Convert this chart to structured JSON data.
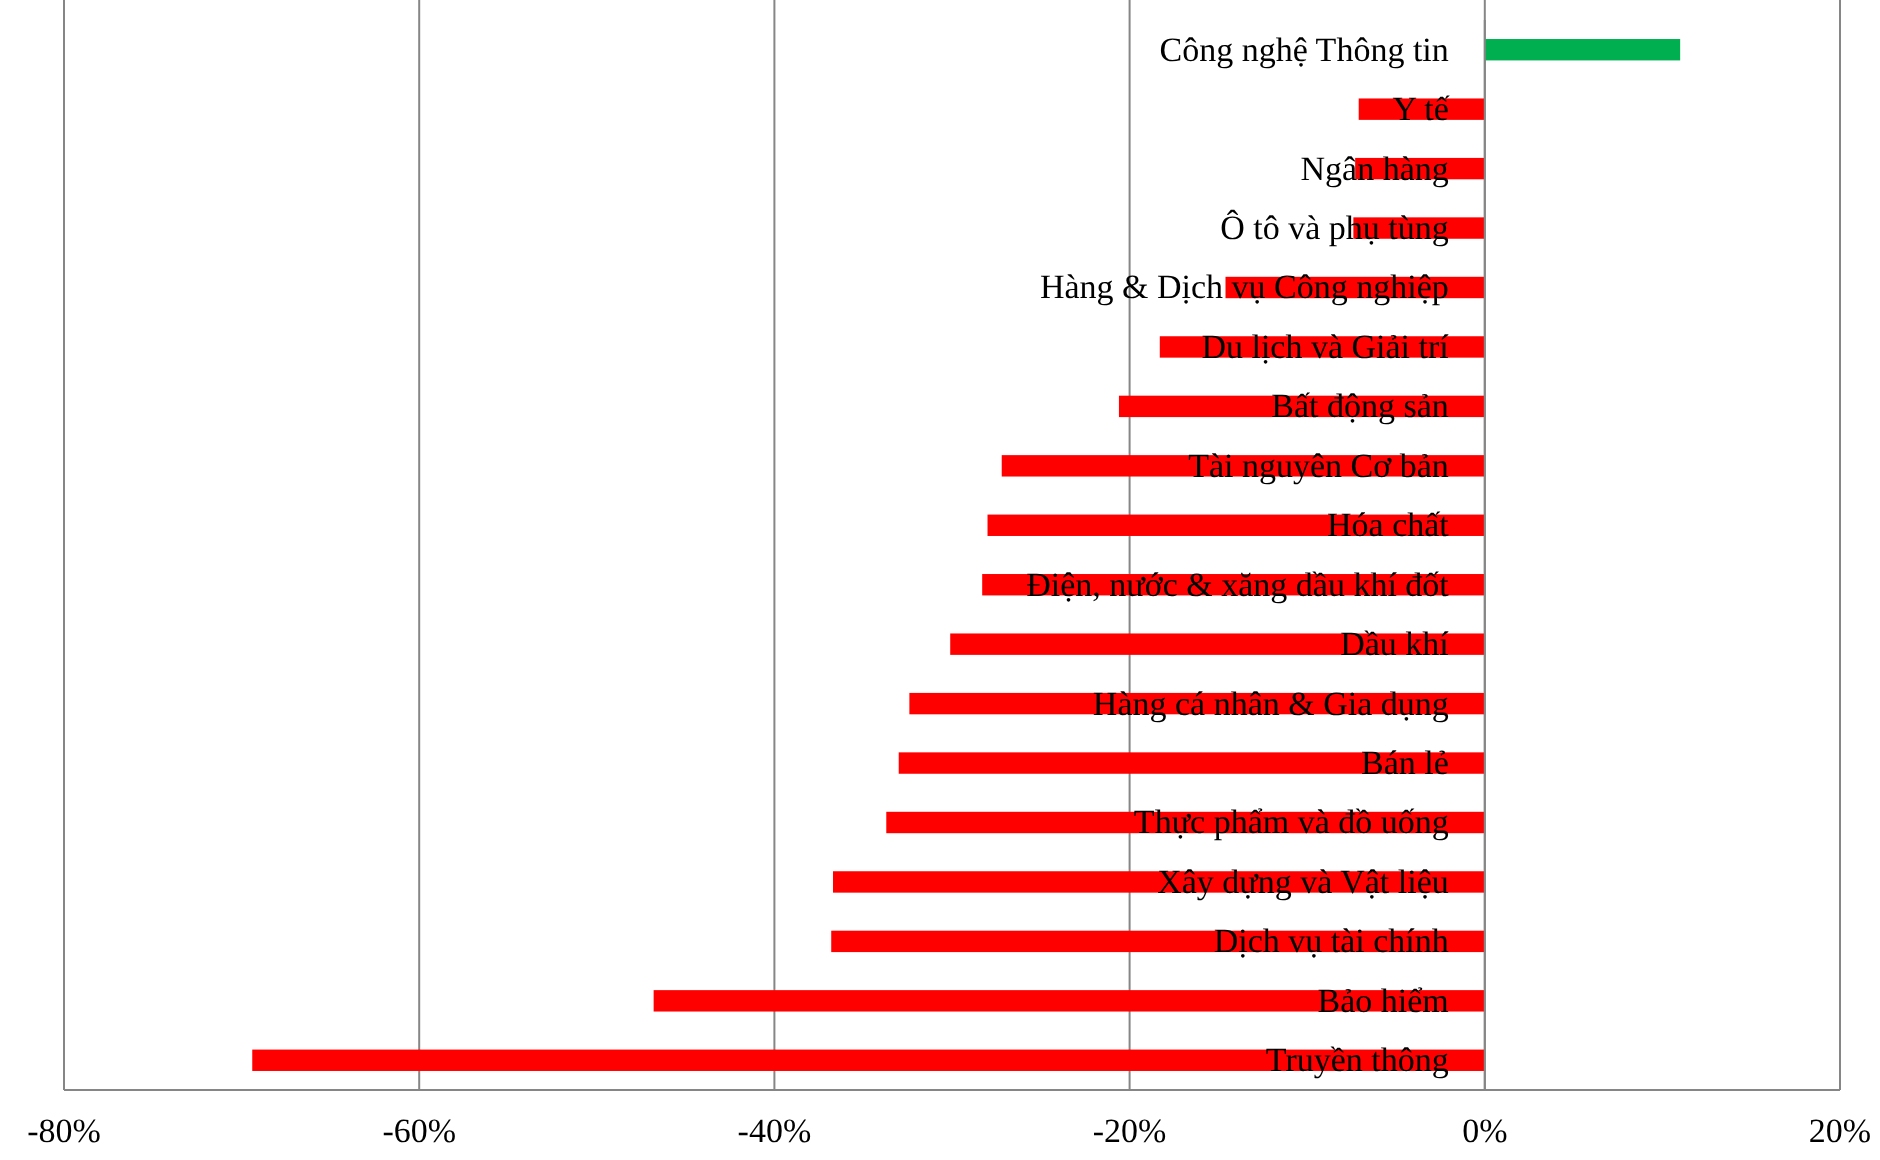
{
  "chart_data": {
    "type": "bar",
    "orientation": "horizontal",
    "categories": [
      "Công nghệ Thông tin",
      "Y tế",
      "Ngân hàng",
      "Ô tô và phụ tùng",
      "Hàng & Dịch vụ Công nghiệp",
      "Du lịch và Giải trí",
      "Bất động sản",
      "Tài nguyên Cơ bản",
      "Hóa chất",
      "Điện, nước & xăng dầu khí đốt",
      "Dầu khí",
      "Hàng cá nhân & Gia dụng",
      "Bán lẻ",
      "Thực phẩm và đồ uống",
      "Xây dựng và Vật liệu",
      "Dịch vụ tài chính",
      "Bảo hiểm",
      "Truyền thông"
    ],
    "values": [
      11,
      -7.1,
      -7.3,
      -7.4,
      -14.6,
      -18.3,
      -20.6,
      -27.2,
      -28,
      -28.3,
      -30.1,
      -32.4,
      -33,
      -33.7,
      -36.7,
      -36.8,
      -46.8,
      -69.4
    ],
    "colors": [
      "#00b050",
      "#ff0000",
      "#ff0000",
      "#ff0000",
      "#ff0000",
      "#ff0000",
      "#ff0000",
      "#ff0000",
      "#ff0000",
      "#ff0000",
      "#ff0000",
      "#ff0000",
      "#ff0000",
      "#ff0000",
      "#ff0000",
      "#ff0000",
      "#ff0000",
      "#ff0000"
    ],
    "xlim": [
      -80,
      20
    ],
    "xticks": [
      {
        "value": -80,
        "label": "-80%"
      },
      {
        "value": -60,
        "label": "-60%"
      },
      {
        "value": -40,
        "label": "-40%"
      },
      {
        "value": -20,
        "label": "-20%"
      },
      {
        "value": 0,
        "label": "0%"
      },
      {
        "value": 20,
        "label": "20%"
      }
    ],
    "grid": "x"
  }
}
